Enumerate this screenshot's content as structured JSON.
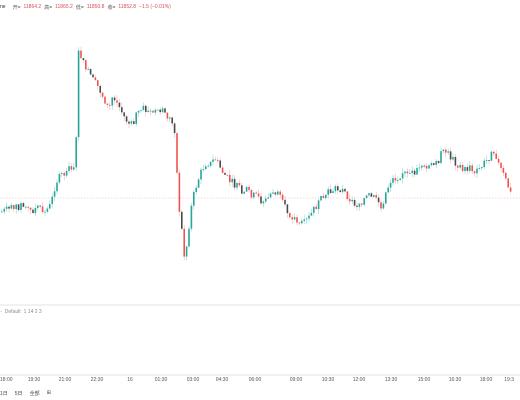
{
  "legend": {
    "symbol_fragment": "ne",
    "open_label": "开=",
    "open_value": "11864.2",
    "high_label": "高=",
    "high_value": "11865.2",
    "low_label": "低=",
    "low_value": "11850.8",
    "close_label": "收=",
    "close_value": "11852.8",
    "change": "−1.5 (−0.01%)"
  },
  "indicator": {
    "name": "Default",
    "params": "1  14  2  3"
  },
  "time_axis": {
    "labels": [
      "18:00",
      "19:30",
      "21:00",
      "22:30",
      "16",
      "01:30",
      "03:00",
      "04:30",
      "06:00",
      "09:00",
      "10:30",
      "12:00",
      "13:30",
      "15:00",
      "16:30",
      "18:00",
      "19:3"
    ]
  },
  "footer": {
    "btn_1d": "1日",
    "btn_5d": "5日",
    "btn_all": "全部"
  },
  "colors": {
    "up": "#26a69a",
    "down": "#ef5350",
    "bear_body": "#4a4a4a",
    "price_line": "#f5b6bb"
  },
  "chart_data": {
    "type": "candlestick",
    "price_points": [
      [
        0,
        212
      ],
      [
        12,
        208
      ],
      [
        22,
        205
      ],
      [
        30,
        211
      ],
      [
        36,
        208
      ],
      [
        44,
        212
      ],
      [
        50,
        205
      ],
      [
        55,
        182
      ],
      [
        60,
        176
      ],
      [
        66,
        172
      ],
      [
        72,
        165
      ],
      [
        75,
        165
      ],
      [
        77,
        45
      ],
      [
        80,
        60
      ],
      [
        86,
        68
      ],
      [
        92,
        80
      ],
      [
        98,
        88
      ],
      [
        104,
        100
      ],
      [
        108,
        110
      ],
      [
        112,
        96
      ],
      [
        118,
        106
      ],
      [
        124,
        118
      ],
      [
        130,
        126
      ],
      [
        136,
        114
      ],
      [
        142,
        108
      ],
      [
        148,
        112
      ],
      [
        154,
        112
      ],
      [
        160,
        110
      ],
      [
        166,
        115
      ],
      [
        170,
        120
      ],
      [
        174,
        130
      ],
      [
        176,
        170
      ],
      [
        178,
        205
      ],
      [
        181,
        230
      ],
      [
        184,
        262
      ],
      [
        187,
        235
      ],
      [
        190,
        210
      ],
      [
        194,
        190
      ],
      [
        198,
        178
      ],
      [
        202,
        168
      ],
      [
        206,
        162
      ],
      [
        210,
        164
      ],
      [
        214,
        158
      ],
      [
        218,
        165
      ],
      [
        222,
        172
      ],
      [
        228,
        180
      ],
      [
        234,
        185
      ],
      [
        240,
        190
      ],
      [
        246,
        190
      ],
      [
        252,
        195
      ],
      [
        258,
        198
      ],
      [
        262,
        202
      ],
      [
        266,
        200
      ],
      [
        272,
        190
      ],
      [
        278,
        196
      ],
      [
        284,
        208
      ],
      [
        290,
        215
      ],
      [
        296,
        220
      ],
      [
        302,
        225
      ],
      [
        308,
        218
      ],
      [
        314,
        208
      ],
      [
        320,
        200
      ],
      [
        326,
        194
      ],
      [
        332,
        190
      ],
      [
        338,
        188
      ],
      [
        344,
        192
      ],
      [
        350,
        200
      ],
      [
        356,
        205
      ],
      [
        362,
        200
      ],
      [
        368,
        196
      ],
      [
        374,
        198
      ],
      [
        380,
        210
      ],
      [
        384,
        195
      ],
      [
        390,
        180
      ],
      [
        396,
        178
      ],
      [
        402,
        172
      ],
      [
        408,
        176
      ],
      [
        414,
        172
      ],
      [
        420,
        170
      ],
      [
        426,
        168
      ],
      [
        432,
        165
      ],
      [
        438,
        160
      ],
      [
        442,
        150
      ],
      [
        446,
        152
      ],
      [
        452,
        160
      ],
      [
        458,
        165
      ],
      [
        464,
        170
      ],
      [
        470,
        168
      ],
      [
        476,
        172
      ],
      [
        482,
        165
      ],
      [
        486,
        160
      ],
      [
        490,
        155
      ],
      [
        494,
        150
      ],
      [
        498,
        165
      ],
      [
        504,
        178
      ],
      [
        508,
        188
      ],
      [
        512,
        200
      ]
    ],
    "reference_price_y_px_note": "",
    "x_ticks": [
      "18:00",
      "19:30",
      "21:00",
      "22:30",
      "16",
      "01:30",
      "03:00",
      "04:30",
      "06:00",
      "09:00",
      "10:30",
      "12:00",
      "13:30",
      "15:00",
      "16:30",
      "18:00",
      "19:3"
    ]
  }
}
